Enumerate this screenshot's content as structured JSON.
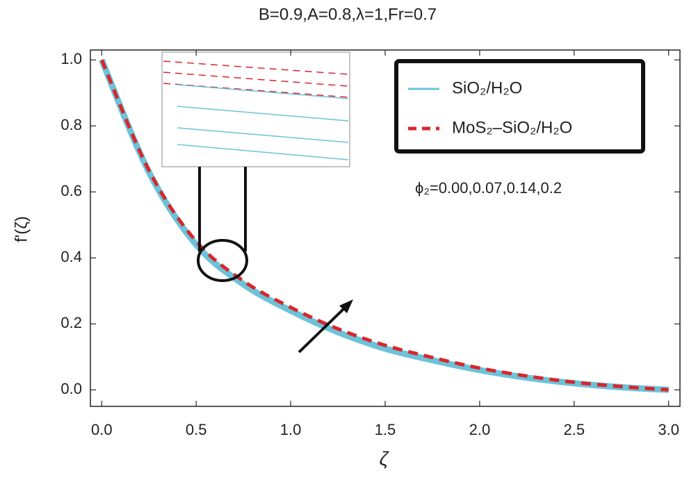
{
  "chart_data": {
    "type": "line",
    "title": "B=0.9,A=0.8,λ=1,Fr=0.7",
    "x_label": "ζ",
    "y_label": "f'(ζ)",
    "annotation": "ϕ₂=0.00,0.07,0.14,0.2",
    "x": [
      0,
      0.25,
      0.5,
      0.75,
      1.0,
      1.25,
      1.5,
      1.75,
      2.0,
      2.25,
      2.5,
      2.75,
      3.0
    ],
    "series": [
      {
        "name": "SiO₂/H₂O",
        "color": "#6cc3d9",
        "values": [
          1.0,
          0.66,
          0.44,
          0.32,
          0.24,
          0.175,
          0.125,
          0.09,
          0.06,
          0.037,
          0.02,
          0.008,
          0.0
        ]
      },
      {
        "name": "MoS₂–SiO₂/H₂O",
        "color": "#d9262c",
        "values": [
          1.0,
          0.665,
          0.45,
          0.33,
          0.25,
          0.185,
          0.135,
          0.098,
          0.066,
          0.042,
          0.023,
          0.01,
          0.0
        ]
      }
    ],
    "xlim": [
      -0.06,
      3.06
    ],
    "ylim": [
      -0.05,
      1.03
    ],
    "xticks": [
      {
        "value": 0,
        "label": "0.0"
      },
      {
        "value": 0.5,
        "label": "0.5"
      },
      {
        "value": 1,
        "label": "1.0"
      },
      {
        "value": 1.5,
        "label": "1.5"
      },
      {
        "value": 2,
        "label": "2.0"
      },
      {
        "value": 2.5,
        "label": "2.5"
      },
      {
        "value": 3,
        "label": "3.0"
      }
    ],
    "yticks": [
      {
        "value": 0,
        "label": "0.0"
      },
      {
        "value": 0.2,
        "label": "0.2"
      },
      {
        "value": 0.4,
        "label": "0.4"
      },
      {
        "value": 0.6,
        "label": "0.6"
      },
      {
        "value": 0.8,
        "label": "0.8"
      },
      {
        "value": 1,
        "label": "1.0"
      }
    ]
  }
}
